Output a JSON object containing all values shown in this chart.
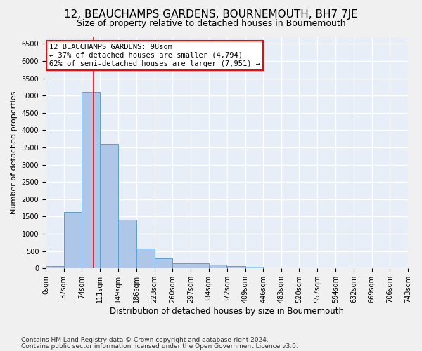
{
  "title": "12, BEAUCHAMPS GARDENS, BOURNEMOUTH, BH7 7JE",
  "subtitle": "Size of property relative to detached houses in Bournemouth",
  "xlabel": "Distribution of detached houses by size in Bournemouth",
  "ylabel": "Number of detached properties",
  "footnote1": "Contains HM Land Registry data © Crown copyright and database right 2024.",
  "footnote2": "Contains public sector information licensed under the Open Government Licence v3.0.",
  "annotation_line1": "12 BEAUCHAMPS GARDENS: 98sqm",
  "annotation_line2": "← 37% of detached houses are smaller (4,794)",
  "annotation_line3": "62% of semi-detached houses are larger (7,951) →",
  "bar_color": "#aec6e8",
  "bar_edge_color": "#5a9fd4",
  "property_line_color": "red",
  "property_sqm": 98,
  "bin_width": 37,
  "bin_starts": [
    0,
    37,
    74,
    111,
    149,
    186,
    223,
    260,
    297,
    334,
    372,
    409,
    446,
    483,
    520,
    557,
    594,
    632,
    669,
    706
  ],
  "bin_labels": [
    "0sqm",
    "37sqm",
    "74sqm",
    "111sqm",
    "149sqm",
    "186sqm",
    "223sqm",
    "260sqm",
    "297sqm",
    "334sqm",
    "372sqm",
    "409sqm",
    "446sqm",
    "483sqm",
    "520sqm",
    "557sqm",
    "594sqm",
    "632sqm",
    "669sqm",
    "706sqm",
    "743sqm"
  ],
  "bar_values": [
    60,
    1620,
    5100,
    3600,
    1400,
    580,
    290,
    155,
    140,
    100,
    60,
    40,
    10,
    5,
    5,
    5,
    3,
    2,
    1,
    1
  ],
  "ylim": [
    0,
    6700
  ],
  "yticks": [
    0,
    500,
    1000,
    1500,
    2000,
    2500,
    3000,
    3500,
    4000,
    4500,
    5000,
    5500,
    6000,
    6500
  ],
  "background_color": "#e8eef8",
  "grid_color": "#ffffff",
  "fig_background": "#f0f0f0",
  "title_fontsize": 11,
  "subtitle_fontsize": 9,
  "annotation_fontsize": 7.5,
  "axis_fontsize": 7,
  "xlabel_fontsize": 8.5,
  "ylabel_fontsize": 8,
  "footnote_fontsize": 6.5
}
